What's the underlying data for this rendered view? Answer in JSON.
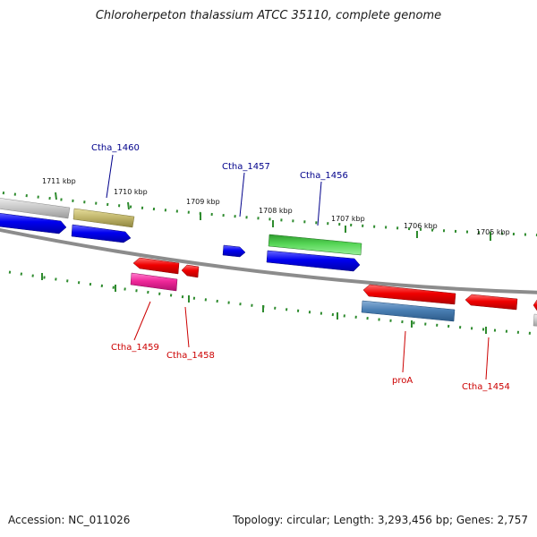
{
  "title": "Chloroherpeton thalassium ATCC 35110, complete genome",
  "footer": {
    "accession_label": "Accession:",
    "accession": "NC_011026",
    "topology_label": "Topology:",
    "topology": "circular",
    "length_label": "Length:",
    "length": "3,293,456 bp",
    "genes_label": "Genes:",
    "genes": "2,757"
  },
  "colors": {
    "backbone": "#8c8c8c",
    "tick": "#2e8b2e",
    "forward_label": "#00008b",
    "reverse_label": "#cc0000"
  },
  "kbp_ticks": [
    {
      "label": "1711 kbp"
    },
    {
      "label": "1710 kbp"
    },
    {
      "label": "1709 kbp"
    },
    {
      "label": "1708 kbp"
    },
    {
      "label": "1707 kbp"
    },
    {
      "label": "1706 kbp"
    },
    {
      "label": "1705 kbp"
    }
  ],
  "gene_labels": [
    {
      "id": "ctha-1460",
      "text": "Ctha_1460",
      "strand": "forward"
    },
    {
      "id": "ctha-1457",
      "text": "Ctha_1457",
      "strand": "forward"
    },
    {
      "id": "ctha-1456",
      "text": "Ctha_1456",
      "strand": "forward"
    },
    {
      "id": "ctha-1459",
      "text": "Ctha_1459",
      "strand": "reverse"
    },
    {
      "id": "ctha-1458",
      "text": "Ctha_1458",
      "strand": "reverse"
    },
    {
      "id": "proa",
      "text": "proA",
      "strand": "reverse"
    },
    {
      "id": "ctha-1454",
      "text": "Ctha_1454",
      "strand": "reverse"
    }
  ]
}
